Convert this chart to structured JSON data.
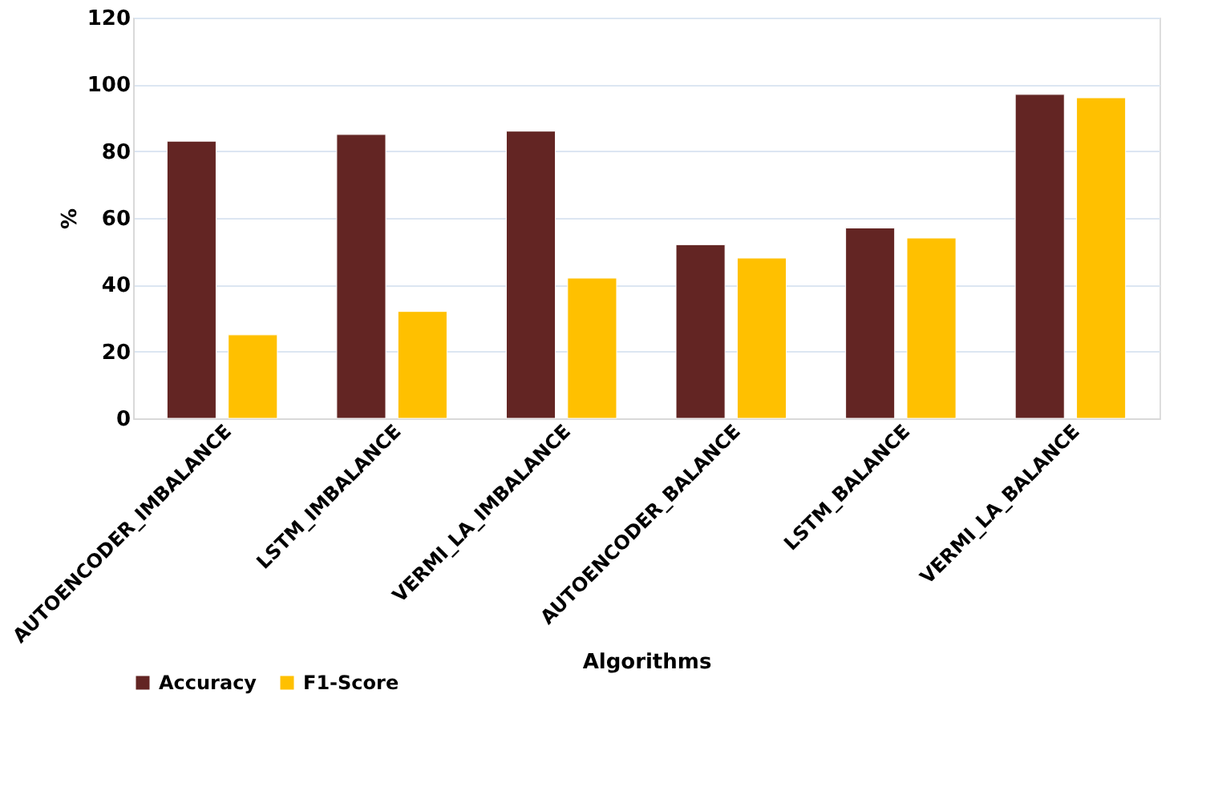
{
  "chart_data": {
    "type": "bar",
    "xlabel": "Algorithms",
    "ylabel": "%",
    "categories": [
      "AUTOENCODER_IMBALANCE",
      "LSTM_IMBALANCE",
      "VERMI_LA_IMBALANCE",
      "AUTOENCODER_BALANCE",
      "LSTM_BALANCE",
      "VERMI_LA_BALANCE"
    ],
    "series": [
      {
        "name": "Accuracy",
        "color": "#632523",
        "values": [
          83,
          85,
          86,
          52,
          57,
          97
        ]
      },
      {
        "name": "F1-Score",
        "color": "#ffc000",
        "values": [
          25,
          32,
          42,
          48,
          54,
          96
        ]
      }
    ],
    "ylim": [
      0,
      120
    ],
    "yticks": [
      0,
      20,
      40,
      60,
      80,
      100,
      120
    ],
    "grid": "y",
    "legend": "bottom left"
  }
}
